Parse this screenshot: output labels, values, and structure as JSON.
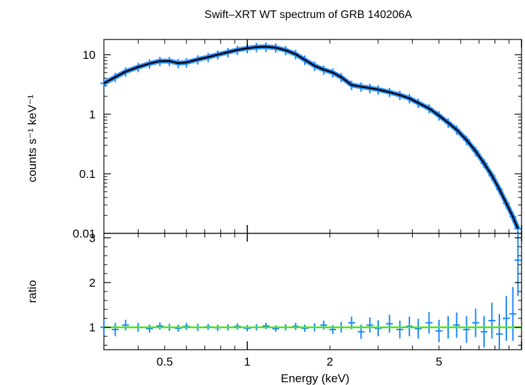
{
  "chart_data": [
    {
      "type": "scatter",
      "title": "Swift–XRT WT spectrum of GRB 140206A",
      "ylabel": "counts s⁻¹ keV⁻¹",
      "xscale": "log",
      "yscale": "log",
      "xlim": [
        0.3,
        10
      ],
      "ylim": [
        0.01,
        18
      ],
      "yticks": [
        0.01,
        0.1,
        1,
        10
      ],
      "ytick_labels": [
        "0.01",
        "0.1",
        "1",
        "10"
      ],
      "series": [
        {
          "type": "errorbar",
          "color": "#1a86ff",
          "x": [
            0.3,
            0.33,
            0.36,
            0.4,
            0.44,
            0.48,
            0.52,
            0.56,
            0.6,
            0.66,
            0.72,
            0.78,
            0.85,
            0.92,
            1.0,
            1.08,
            1.17,
            1.27,
            1.38,
            1.5,
            1.62,
            1.76,
            1.9,
            2.05,
            2.2,
            2.4,
            2.6,
            2.8,
            3.0,
            3.3,
            3.6,
            3.9,
            4.2,
            4.6,
            5.0,
            5.4,
            5.8,
            6.3,
            6.8,
            7.3,
            7.8,
            8.3,
            8.8,
            9.3,
            9.7
          ],
          "y": [
            3.3,
            4.2,
            5.2,
            6.2,
            7.1,
            7.8,
            7.8,
            7.2,
            7.4,
            8.3,
            9.1,
            10.0,
            11.0,
            12.0,
            12.8,
            13.4,
            13.6,
            13.1,
            11.9,
            10.2,
            8.2,
            6.5,
            5.6,
            5.0,
            4.2,
            3.1,
            2.9,
            2.75,
            2.6,
            2.35,
            2.1,
            1.85,
            1.55,
            1.25,
            0.95,
            0.72,
            0.55,
            0.37,
            0.24,
            0.15,
            0.093,
            0.055,
            0.032,
            0.019,
            0.012
          ]
        },
        {
          "type": "line",
          "color": "#000000",
          "x": [
            0.3,
            0.33,
            0.36,
            0.4,
            0.44,
            0.48,
            0.52,
            0.56,
            0.6,
            0.66,
            0.72,
            0.78,
            0.85,
            0.92,
            1.0,
            1.08,
            1.17,
            1.27,
            1.38,
            1.5,
            1.62,
            1.76,
            1.9,
            2.05,
            2.2,
            2.4,
            2.6,
            2.8,
            3.0,
            3.3,
            3.6,
            3.9,
            4.2,
            4.6,
            5.0,
            5.4,
            5.8,
            6.3,
            6.8,
            7.3,
            7.8,
            8.3,
            8.8,
            9.3,
            9.7
          ],
          "y": [
            3.3,
            4.2,
            5.2,
            6.2,
            7.1,
            7.8,
            7.8,
            7.2,
            7.4,
            8.3,
            9.1,
            10.0,
            11.0,
            12.0,
            12.8,
            13.4,
            13.6,
            13.1,
            11.9,
            10.2,
            8.2,
            6.5,
            5.6,
            5.0,
            4.2,
            3.1,
            2.9,
            2.75,
            2.6,
            2.35,
            2.1,
            1.85,
            1.55,
            1.25,
            0.95,
            0.72,
            0.55,
            0.37,
            0.24,
            0.15,
            0.093,
            0.055,
            0.032,
            0.019,
            0.012
          ]
        }
      ]
    },
    {
      "type": "scatter",
      "xlabel": "Energy (keV)",
      "ylabel": "ratio",
      "xscale": "log",
      "xlim": [
        0.3,
        10
      ],
      "ylim": [
        0.5,
        3.1
      ],
      "xticks": [
        0.5,
        1,
        2,
        5
      ],
      "xtick_labels": [
        "0.5",
        "1",
        "2",
        "5"
      ],
      "yticks": [
        1,
        2,
        3
      ],
      "ytick_labels": [
        "1",
        "2",
        "3"
      ],
      "reference_line": {
        "y": 1,
        "color": "#44ee00"
      },
      "series": [
        {
          "type": "errorbar",
          "color": "#1a86ff",
          "x": [
            0.3,
            0.33,
            0.36,
            0.4,
            0.44,
            0.48,
            0.52,
            0.56,
            0.6,
            0.66,
            0.72,
            0.78,
            0.85,
            0.92,
            1.0,
            1.08,
            1.17,
            1.27,
            1.38,
            1.5,
            1.62,
            1.76,
            1.9,
            2.05,
            2.2,
            2.4,
            2.6,
            2.8,
            3.0,
            3.3,
            3.6,
            3.9,
            4.2,
            4.6,
            5.0,
            5.4,
            5.8,
            6.3,
            6.8,
            7.3,
            7.8,
            8.3,
            8.8,
            9.3,
            9.7
          ],
          "y": [
            1.0,
            0.95,
            1.05,
            1.0,
            0.97,
            1.03,
            1.0,
            0.98,
            1.02,
            1.0,
            1.01,
            0.99,
            1.0,
            1.02,
            0.98,
            1.0,
            1.03,
            0.97,
            1.0,
            1.02,
            0.98,
            1.0,
            1.05,
            0.95,
            1.0,
            1.1,
            0.9,
            1.05,
            0.98,
            1.08,
            0.95,
            1.02,
            0.97,
            1.1,
            0.92,
            1.0,
            1.05,
            0.95,
            1.1,
            0.9,
            1.15,
            0.85,
            1.2,
            1.3,
            2.5
          ],
          "yerr": [
            0.18,
            0.15,
            0.12,
            0.1,
            0.09,
            0.08,
            0.08,
            0.08,
            0.08,
            0.08,
            0.07,
            0.07,
            0.07,
            0.07,
            0.07,
            0.07,
            0.07,
            0.07,
            0.07,
            0.08,
            0.08,
            0.09,
            0.1,
            0.1,
            0.12,
            0.14,
            0.16,
            0.17,
            0.18,
            0.2,
            0.2,
            0.22,
            0.22,
            0.24,
            0.25,
            0.25,
            0.28,
            0.3,
            0.32,
            0.35,
            0.4,
            0.45,
            0.5,
            0.6,
            0.8
          ]
        }
      ]
    }
  ]
}
